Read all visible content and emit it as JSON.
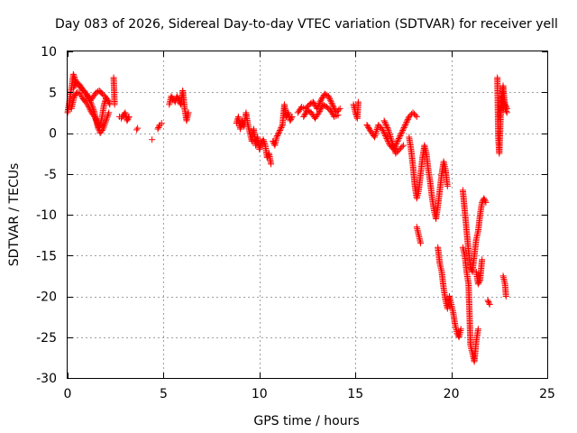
{
  "chart_data": {
    "type": "scatter",
    "title": "Day 083 of 2026, Sidereal Day-to-day VTEC variation (SDTVAR) for receiver yell",
    "xlabel": "GPS time / hours",
    "ylabel": "SDTVAR / TECUs",
    "xlim": [
      0,
      25
    ],
    "ylim": [
      -30,
      10
    ],
    "xticks": [
      0,
      5,
      10,
      15,
      20,
      25
    ],
    "yticks": [
      10,
      5,
      0,
      -5,
      -10,
      -15,
      -20,
      -25,
      -30
    ],
    "xtick_labels": [
      "0",
      "5",
      "10",
      "15",
      "20",
      "25"
    ],
    "ytick_labels": [
      "10",
      "5",
      "0",
      "-5",
      "-10",
      "-15",
      "-20",
      "-25",
      "-30"
    ],
    "grid": true,
    "marker": "+",
    "color": "#ff0000",
    "series": [
      {
        "name": "SDTVAR",
        "segments": [
          {
            "x": [
              0.0,
              0.1,
              0.2,
              0.3,
              0.4,
              0.5,
              0.6,
              0.7,
              0.8,
              0.9,
              1.0,
              1.1,
              1.2,
              1.3,
              1.4,
              1.5,
              1.6,
              1.7,
              1.8,
              1.9,
              2.0,
              2.1,
              2.2
            ],
            "y": [
              2.5,
              4.0,
              5.5,
              7.2,
              6.5,
              6.0,
              5.8,
              5.5,
              5.2,
              5.0,
              4.8,
              4.2,
              3.8,
              3.2,
              2.5,
              1.5,
              0.5,
              1.0,
              2.0,
              3.5,
              4.2,
              4.0,
              3.5
            ]
          },
          {
            "x": [
              0.2,
              0.35,
              0.5,
              0.65,
              0.8,
              0.95,
              1.1,
              1.25,
              1.4,
              1.55,
              1.7,
              1.85,
              2.0,
              2.15
            ],
            "y": [
              3.0,
              4.5,
              5.0,
              4.8,
              4.2,
              3.8,
              3.2,
              2.5,
              2.0,
              1.2,
              0.0,
              0.5,
              1.5,
              2.5
            ]
          },
          {
            "x": [
              0.3,
              0.45,
              0.6,
              0.75,
              0.9,
              1.05,
              1.2,
              1.35,
              1.5,
              1.65,
              1.8,
              1.95,
              2.1
            ],
            "y": [
              5.5,
              6.2,
              6.0,
              5.5,
              5.0,
              4.5,
              4.0,
              4.5,
              5.0,
              5.2,
              4.8,
              4.5,
              4.0
            ]
          },
          {
            "x": [
              2.4,
              2.45
            ],
            "y": [
              6.8,
              3.5
            ]
          },
          {
            "x": [
              2.7,
              2.8,
              2.9,
              3.0,
              3.1,
              3.2
            ],
            "y": [
              2.0,
              1.8,
              2.2,
              2.5,
              1.5,
              2.0
            ]
          },
          {
            "x": [
              3.6,
              3.65
            ],
            "y": [
              0.4,
              0.6
            ]
          },
          {
            "x": [
              4.4
            ],
            "y": [
              -0.8
            ]
          },
          {
            "x": [
              4.7,
              4.8,
              4.9
            ],
            "y": [
              0.5,
              1.0,
              1.2
            ]
          },
          {
            "x": [
              5.3,
              5.4,
              5.5,
              5.6,
              5.7,
              5.8,
              5.9,
              6.0,
              6.1,
              6.2,
              6.3
            ],
            "y": [
              3.5,
              4.5,
              4.2,
              3.8,
              4.5,
              4.0,
              3.5,
              5.2,
              3.0,
              1.5,
              2.5
            ]
          },
          {
            "x": [
              8.8,
              8.9,
              9.0,
              9.1,
              9.2,
              9.3,
              9.4,
              9.5,
              9.6,
              9.7,
              9.8,
              9.9,
              10.0,
              10.1,
              10.2,
              10.3,
              10.4,
              10.5,
              10.6
            ],
            "y": [
              1.2,
              2.0,
              0.5,
              1.5,
              0.8,
              2.5,
              1.0,
              0.0,
              -1.0,
              0.5,
              -1.5,
              -0.5,
              -2.0,
              -1.2,
              -0.8,
              -1.5,
              -3.0,
              -2.5,
              -3.8
            ]
          },
          {
            "x": [
              10.7,
              10.8,
              10.9,
              11.0,
              11.1,
              11.2,
              11.3,
              11.4,
              11.5,
              11.6,
              11.7
            ],
            "y": [
              -1.0,
              -1.5,
              -0.5,
              0.0,
              0.5,
              1.0,
              3.5,
              2.0,
              2.5,
              1.5,
              2.0
            ]
          },
          {
            "x": [
              12.0,
              12.2,
              12.4,
              12.6,
              12.8,
              13.0,
              13.2,
              13.4,
              13.6,
              13.8,
              14.0,
              14.2
            ],
            "y": [
              2.5,
              3.2,
              3.0,
              3.5,
              3.8,
              3.0,
              4.0,
              4.8,
              4.5,
              3.5,
              2.5,
              3.0
            ]
          },
          {
            "x": [
              12.3,
              12.5,
              12.7,
              12.9,
              13.1,
              13.3,
              13.5,
              13.7,
              13.9,
              14.1
            ],
            "y": [
              2.0,
              2.8,
              2.5,
              1.8,
              2.5,
              3.5,
              3.2,
              2.8,
              2.0,
              2.2
            ]
          },
          {
            "x": [
              14.9,
              15.0,
              15.1,
              15.15
            ],
            "y": [
              3.5,
              2.5,
              1.8,
              3.8
            ]
          },
          {
            "x": [
              15.6,
              15.8,
              16.0,
              16.2,
              16.4,
              16.6,
              16.8,
              17.0,
              17.2,
              17.4,
              17.6,
              17.8,
              18.0,
              18.2
            ],
            "y": [
              1.0,
              0.2,
              -0.5,
              1.0,
              0.5,
              -0.5,
              -1.5,
              -2.0,
              -1.0,
              0.0,
              1.0,
              2.0,
              2.5,
              2.0
            ]
          },
          {
            "x": [
              16.5,
              16.7,
              16.9,
              17.1,
              17.3,
              17.5
            ],
            "y": [
              1.5,
              0.5,
              -1.0,
              -2.5,
              -2.0,
              -1.5
            ]
          },
          {
            "x": [
              17.8,
              17.9,
              18.0,
              18.1,
              18.2,
              18.3,
              18.4,
              18.5,
              18.6,
              18.7,
              18.8,
              18.9,
              19.0,
              19.1,
              19.2,
              19.3,
              19.4,
              19.5,
              19.6,
              19.7,
              19.8
            ],
            "y": [
              -0.5,
              -2.0,
              -4.0,
              -6.5,
              -8.0,
              -7.0,
              -5.0,
              -3.0,
              -1.5,
              -2.5,
              -4.5,
              -6.0,
              -8.0,
              -9.5,
              -10.5,
              -9.0,
              -7.0,
              -5.0,
              -3.5,
              -4.5,
              -6.5
            ]
          },
          {
            "x": [
              18.2,
              18.3,
              18.4
            ],
            "y": [
              -11.5,
              -12.5,
              -13.5
            ]
          },
          {
            "x": [
              19.3,
              19.4,
              19.5,
              19.6,
              19.7,
              19.8,
              19.9,
              20.0,
              20.1,
              20.2,
              20.3,
              20.4,
              20.5
            ],
            "y": [
              -14.0,
              -16.0,
              -17.0,
              -19.0,
              -20.5,
              -21.5,
              -20.0,
              -21.0,
              -22.0,
              -23.5,
              -24.5,
              -25.0,
              -24.0
            ]
          },
          {
            "x": [
              20.6,
              20.7,
              20.8,
              20.9,
              21.0,
              21.1,
              21.2,
              21.3,
              21.4
            ],
            "y": [
              -14.0,
              -15.0,
              -17.0,
              -18.5,
              -26.0,
              -27.0,
              -28.0,
              -25.5,
              -24.0
            ]
          },
          {
            "x": [
              20.6,
              20.7,
              20.8,
              20.9,
              21.0,
              21.1,
              21.2,
              21.3,
              21.4,
              21.5,
              21.6,
              21.7,
              21.8
            ],
            "y": [
              -7.0,
              -9.5,
              -12.0,
              -14.5,
              -16.5,
              -17.0,
              -15.0,
              -13.0,
              -12.0,
              -10.0,
              -8.5,
              -8.0,
              -8.5
            ]
          },
          {
            "x": [
              21.3,
              21.4,
              21.5,
              21.6
            ],
            "y": [
              -17.0,
              -18.5,
              -18.0,
              -15.5
            ]
          },
          {
            "x": [
              21.9,
              22.0
            ],
            "y": [
              -20.5,
              -21.0
            ]
          },
          {
            "x": [
              22.4,
              22.45,
              22.5,
              22.6,
              22.7,
              22.8,
              22.9
            ],
            "y": [
              6.8,
              -0.5,
              -2.5,
              4.0,
              5.8,
              3.0,
              2.5
            ]
          },
          {
            "x": [
              22.5,
              22.6,
              22.7,
              22.8,
              22.9
            ],
            "y": [
              2.0,
              3.0,
              4.5,
              3.5,
              3.0
            ]
          },
          {
            "x": [
              22.7,
              22.8,
              22.85
            ],
            "y": [
              -17.5,
              -18.5,
              -20.0
            ]
          }
        ]
      }
    ]
  }
}
